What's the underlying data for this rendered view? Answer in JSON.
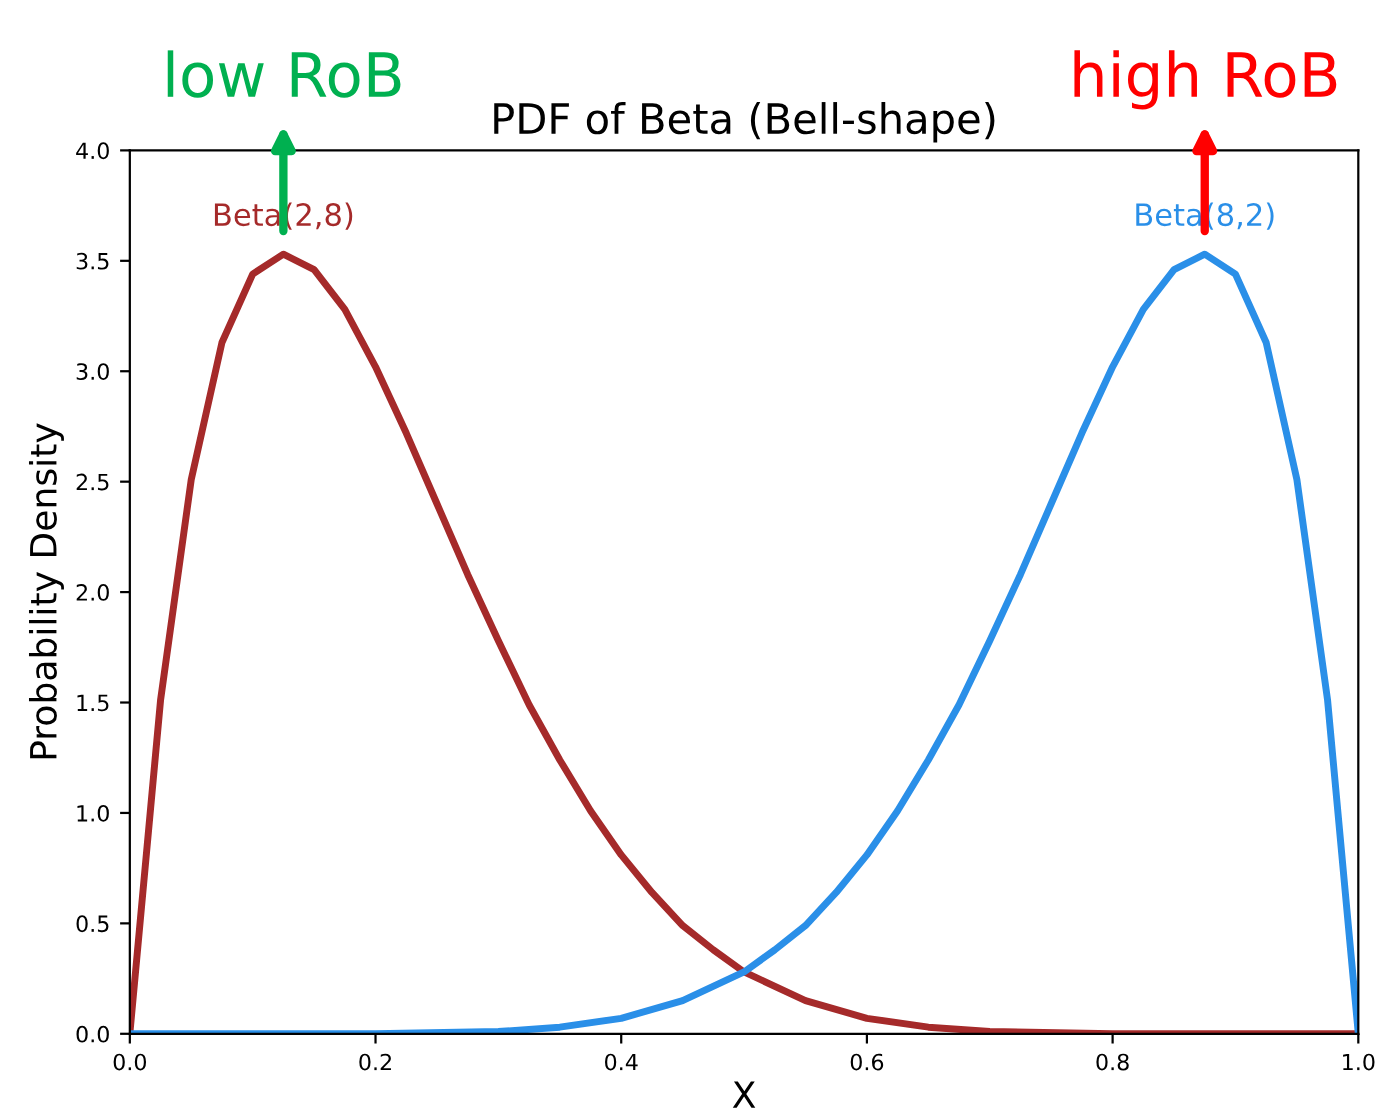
{
  "chart_data": {
    "type": "line",
    "title": "PDF of Beta (Bell-shape)",
    "xlabel": "X",
    "ylabel": "Probability Density",
    "xlim": [
      0.0,
      1.0
    ],
    "ylim": [
      0.0,
      4.0
    ],
    "xticks": [
      {
        "value": 0,
        "label": "0.0"
      },
      0.2,
      0.4,
      0.6,
      0.8,
      {
        "value": 1,
        "label": "1.0"
      }
    ],
    "yticks": [
      {
        "value": 0,
        "label": "0.0"
      },
      0.5,
      {
        "value": 1,
        "label": "1.0"
      },
      1.5,
      {
        "value": 2,
        "label": "2.0"
      },
      2.5,
      {
        "value": 3,
        "label": "3.0"
      },
      3.5,
      {
        "value": 4,
        "label": "4.0"
      }
    ],
    "grid": false,
    "legend": false,
    "marker": "none",
    "line_style": "solid",
    "series": [
      {
        "name": "Beta(2,8)",
        "color": "#a52a2a",
        "x": [
          0,
          0.025,
          0.05,
          0.075,
          0.1,
          0.125,
          0.15,
          0.175,
          0.2,
          0.225,
          0.25,
          0.275,
          0.3,
          0.325,
          0.35,
          0.375,
          0.4,
          0.425,
          0.45,
          0.475,
          0.5,
          0.55,
          0.6,
          0.65,
          0.7,
          0.8,
          0.9,
          1.0
        ],
        "values": [
          0,
          1.51,
          2.51,
          3.13,
          3.44,
          3.53,
          3.46,
          3.28,
          3.02,
          2.72,
          2.4,
          2.08,
          1.78,
          1.49,
          1.24,
          1.01,
          0.81,
          0.64,
          0.49,
          0.38,
          0.28,
          0.15,
          0.07,
          0.03,
          0.01,
          0,
          0,
          0
        ]
      },
      {
        "name": "Beta(8,2)",
        "color": "#2a8fe8",
        "x": [
          0,
          0.1,
          0.2,
          0.3,
          0.35,
          0.4,
          0.45,
          0.5,
          0.525,
          0.55,
          0.575,
          0.6,
          0.625,
          0.65,
          0.675,
          0.7,
          0.725,
          0.75,
          0.775,
          0.8,
          0.825,
          0.85,
          0.875,
          0.9,
          0.925,
          0.95,
          0.975,
          1.0
        ],
        "values": [
          0,
          0,
          0,
          0.01,
          0.03,
          0.07,
          0.15,
          0.28,
          0.38,
          0.49,
          0.64,
          0.81,
          1.01,
          1.24,
          1.49,
          1.78,
          2.08,
          2.4,
          2.72,
          3.02,
          3.28,
          3.46,
          3.53,
          3.44,
          3.13,
          2.51,
          1.51,
          0
        ]
      }
    ],
    "annotations": [
      "low RoB",
      "high RoB"
    ]
  }
}
